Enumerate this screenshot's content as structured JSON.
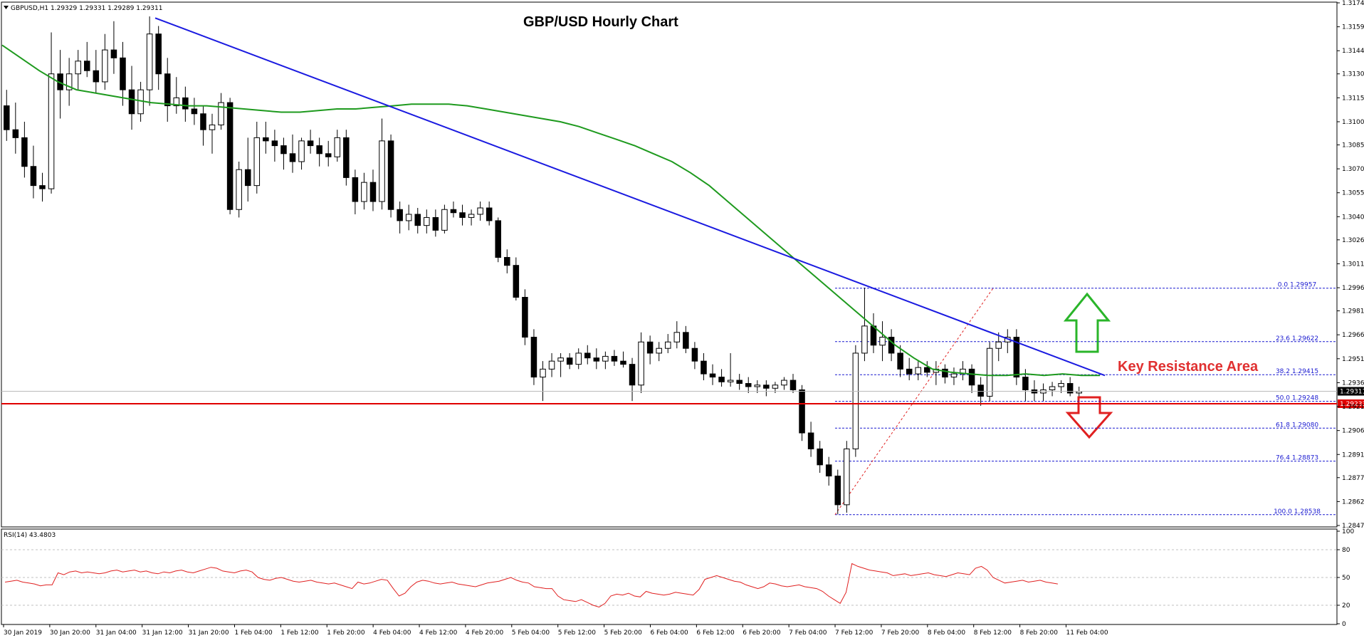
{
  "chart_data": [
    {
      "type": "candlestick",
      "symbol_header": "GBPUSD,H1  1.29329 1.29331 1.29289 1.29311",
      "title": "GBP/USD Hourly Chart",
      "annotation": "Key Resistance Area",
      "ylim": [
        1.2847,
        1.31745
      ],
      "y_ticks": [
        "1.31745",
        "1.31595",
        "1.31445",
        "1.31300",
        "1.31150",
        "1.31000",
        "1.30855",
        "1.30705",
        "1.30555",
        "1.30405",
        "1.30260",
        "1.30110",
        "1.29960",
        "1.29815",
        "1.29665",
        "1.29515",
        "1.29365",
        "1.29215",
        "1.29065",
        "1.28915",
        "1.28770",
        "1.28620",
        "1.28470"
      ],
      "x_ticks": [
        "30 Jan 2019",
        "30 Jan 20:00",
        "31 Jan 04:00",
        "31 Jan 12:00",
        "31 Jan 20:00",
        "1 Feb 04:00",
        "1 Feb 12:00",
        "1 Feb 20:00",
        "4 Feb 04:00",
        "4 Feb 12:00",
        "4 Feb 20:00",
        "5 Feb 04:00",
        "5 Feb 12:00",
        "5 Feb 20:00",
        "6 Feb 04:00",
        "6 Feb 12:00",
        "6 Feb 20:00",
        "7 Feb 04:00",
        "7 Feb 12:00",
        "7 Feb 20:00",
        "8 Feb 04:00",
        "8 Feb 12:00",
        "8 Feb 20:00",
        "11 Feb 04:00"
      ],
      "current_price": "1.29311",
      "support_level": "1.29233",
      "fibonacci_levels": [
        {
          "label": "0.0 1.29957",
          "value": 1.29957
        },
        {
          "label": "23.6 1.29622",
          "value": 1.29622
        },
        {
          "label": "38.2 1.29415",
          "value": 1.29415
        },
        {
          "label": "50.0 1.29248",
          "value": 1.29248
        },
        {
          "label": "61.8 1.29080",
          "value": 1.2908
        },
        {
          "label": "76.4 1.28873",
          "value": 1.28873
        },
        {
          "label": "100.0 1.28538",
          "value": 1.28538
        }
      ],
      "trendline": {
        "start": {
          "x": "31 Jan 12:00",
          "y": 1.3165
        },
        "end": {
          "x": "11 Feb 04:00",
          "y": 1.2941
        }
      },
      "fib_swing": {
        "low": 1.28538,
        "high": 1.29957
      },
      "moving_average_color": "#1e9a1e",
      "trendline_color": "#1a1ae0",
      "support_color": "#e00000",
      "candles": [
        [
          1.311,
          1.312,
          1.3088,
          1.3095
        ],
        [
          1.3095,
          1.3112,
          1.308,
          1.309
        ],
        [
          1.309,
          1.31,
          1.3065,
          1.3072
        ],
        [
          1.3072,
          1.3085,
          1.3052,
          1.306
        ],
        [
          1.306,
          1.3068,
          1.305,
          1.3058
        ],
        [
          1.3058,
          1.3156,
          1.3055,
          1.313
        ],
        [
          1.313,
          1.3145,
          1.3102,
          1.312
        ],
        [
          1.312,
          1.314,
          1.311,
          1.313
        ],
        [
          1.313,
          1.3145,
          1.312,
          1.3138
        ],
        [
          1.3138,
          1.315,
          1.3128,
          1.3132
        ],
        [
          1.3132,
          1.3145,
          1.3118,
          1.3125
        ],
        [
          1.3125,
          1.3155,
          1.312,
          1.3145
        ],
        [
          1.3145,
          1.3163,
          1.313,
          1.314
        ],
        [
          1.314,
          1.315,
          1.311,
          1.312
        ],
        [
          1.312,
          1.3135,
          1.3095,
          1.3105
        ],
        [
          1.3105,
          1.3125,
          1.31,
          1.312
        ],
        [
          1.312,
          1.3166,
          1.311,
          1.3155
        ],
        [
          1.3155,
          1.316,
          1.312,
          1.313
        ],
        [
          1.313,
          1.314,
          1.31,
          1.311
        ],
        [
          1.311,
          1.3128,
          1.3105,
          1.3115
        ],
        [
          1.3115,
          1.3122,
          1.31,
          1.3108
        ],
        [
          1.3108,
          1.3115,
          1.3098,
          1.3105
        ],
        [
          1.3105,
          1.311,
          1.3085,
          1.3095
        ],
        [
          1.3095,
          1.3105,
          1.308,
          1.3098
        ],
        [
          1.3098,
          1.3118,
          1.3095,
          1.3112
        ],
        [
          1.3112,
          1.3115,
          1.3042,
          1.3045
        ],
        [
          1.3045,
          1.3075,
          1.304,
          1.307
        ],
        [
          1.307,
          1.309,
          1.305,
          1.306
        ],
        [
          1.306,
          1.31,
          1.3055,
          1.309
        ],
        [
          1.309,
          1.31,
          1.308,
          1.3088
        ],
        [
          1.3088,
          1.3095,
          1.3075,
          1.3085
        ],
        [
          1.3085,
          1.309,
          1.307,
          1.308
        ],
        [
          1.308,
          1.3092,
          1.3068,
          1.3075
        ],
        [
          1.3075,
          1.309,
          1.307,
          1.3088
        ],
        [
          1.3088,
          1.3095,
          1.308,
          1.3085
        ],
        [
          1.3085,
          1.309,
          1.3072,
          1.308
        ],
        [
          1.308,
          1.3088,
          1.3072,
          1.3078
        ],
        [
          1.3078,
          1.3095,
          1.3075,
          1.309
        ],
        [
          1.309,
          1.3095,
          1.306,
          1.3065
        ],
        [
          1.3065,
          1.307,
          1.3042,
          1.305
        ],
        [
          1.305,
          1.3068,
          1.3045,
          1.3062
        ],
        [
          1.3062,
          1.307,
          1.3044,
          1.305
        ],
        [
          1.305,
          1.3102,
          1.3045,
          1.3088
        ],
        [
          1.3088,
          1.3092,
          1.304,
          1.3045
        ],
        [
          1.3045,
          1.305,
          1.303,
          1.3038
        ],
        [
          1.3038,
          1.3048,
          1.3032,
          1.3042
        ],
        [
          1.3042,
          1.3046,
          1.303,
          1.3035
        ],
        [
          1.3035,
          1.3045,
          1.303,
          1.304
        ],
        [
          1.304,
          1.3045,
          1.3028,
          1.3032
        ],
        [
          1.3032,
          1.3048,
          1.303,
          1.3045
        ],
        [
          1.3045,
          1.305,
          1.304,
          1.3043
        ],
        [
          1.3043,
          1.3048,
          1.3035,
          1.304
        ],
        [
          1.304,
          1.3045,
          1.3035,
          1.3042
        ],
        [
          1.3042,
          1.305,
          1.3038,
          1.3046
        ],
        [
          1.3046,
          1.305,
          1.3035,
          1.3038
        ],
        [
          1.3038,
          1.304,
          1.3012,
          1.3015
        ],
        [
          1.3015,
          1.302,
          1.3005,
          1.301
        ],
        [
          1.301,
          1.3015,
          1.2988,
          1.299
        ],
        [
          1.299,
          1.2995,
          1.296,
          1.2965
        ],
        [
          1.2965,
          1.297,
          1.2935,
          1.294
        ],
        [
          1.294,
          1.295,
          1.2925,
          1.2945
        ],
        [
          1.2945,
          1.2955,
          1.294,
          1.295
        ],
        [
          1.295,
          1.2955,
          1.294,
          1.2952
        ],
        [
          1.2952,
          1.2955,
          1.2945,
          1.2948
        ],
        [
          1.2948,
          1.2958,
          1.2945,
          1.2955
        ],
        [
          1.2955,
          1.296,
          1.2948,
          1.2952
        ],
        [
          1.2952,
          1.2958,
          1.2945,
          1.295
        ],
        [
          1.295,
          1.2956,
          1.2945,
          1.2953
        ],
        [
          1.2953,
          1.2957,
          1.2947,
          1.295
        ],
        [
          1.295,
          1.2956,
          1.2946,
          1.2948
        ],
        [
          1.2948,
          1.2952,
          1.2925,
          1.2935
        ],
        [
          1.2935,
          1.2968,
          1.293,
          1.2962
        ],
        [
          1.2962,
          1.2966,
          1.2948,
          1.2955
        ],
        [
          1.2955,
          1.2962,
          1.295,
          1.2958
        ],
        [
          1.2958,
          1.2967,
          1.2955,
          1.2962
        ],
        [
          1.2962,
          1.2975,
          1.2958,
          1.2968
        ],
        [
          1.2968,
          1.2972,
          1.2955,
          1.2958
        ],
        [
          1.2958,
          1.2962,
          1.2945,
          1.295
        ],
        [
          1.295,
          1.2955,
          1.2938,
          1.2942
        ],
        [
          1.2942,
          1.2948,
          1.2935,
          1.294
        ],
        [
          1.294,
          1.2945,
          1.2934,
          1.2937
        ],
        [
          1.2937,
          1.2955,
          1.2934,
          1.2938
        ],
        [
          1.2938,
          1.2942,
          1.2932,
          1.2936
        ],
        [
          1.2936,
          1.294,
          1.293,
          1.2934
        ],
        [
          1.2934,
          1.2938,
          1.293,
          1.2935
        ],
        [
          1.2935,
          1.2938,
          1.2928,
          1.2933
        ],
        [
          1.2933,
          1.2937,
          1.293,
          1.2935
        ],
        [
          1.2935,
          1.294,
          1.2932,
          1.2938
        ],
        [
          1.2938,
          1.2942,
          1.293,
          1.2932
        ],
        [
          1.2932,
          1.2935,
          1.29,
          1.2905
        ],
        [
          1.2905,
          1.2912,
          1.289,
          1.2895
        ],
        [
          1.2895,
          1.29,
          1.288,
          1.2885
        ],
        [
          1.2885,
          1.289,
          1.2872,
          1.2878
        ],
        [
          1.2878,
          1.2882,
          1.2854,
          1.286
        ],
        [
          1.286,
          1.29,
          1.2855,
          1.2895
        ],
        [
          1.2895,
          1.296,
          1.289,
          1.2955
        ],
        [
          1.2955,
          1.2996,
          1.295,
          1.2972
        ],
        [
          1.2972,
          1.298,
          1.2955,
          1.296
        ],
        [
          1.296,
          1.2975,
          1.295,
          1.2965
        ],
        [
          1.2965,
          1.297,
          1.295,
          1.2955
        ],
        [
          1.2955,
          1.296,
          1.294,
          1.2945
        ],
        [
          1.2945,
          1.2952,
          1.2938,
          1.2942
        ],
        [
          1.2942,
          1.295,
          1.2938,
          1.2946
        ],
        [
          1.2946,
          1.295,
          1.294,
          1.2943
        ],
        [
          1.2943,
          1.295,
          1.2935,
          1.2945
        ],
        [
          1.2945,
          1.2948,
          1.2936,
          1.294
        ],
        [
          1.294,
          1.2946,
          1.2935,
          1.2942
        ],
        [
          1.2942,
          1.295,
          1.2938,
          1.2945
        ],
        [
          1.2945,
          1.2948,
          1.293,
          1.2935
        ],
        [
          1.2935,
          1.294,
          1.2922,
          1.2928
        ],
        [
          1.2928,
          1.2962,
          1.2925,
          1.2958
        ],
        [
          1.2958,
          1.2968,
          1.295,
          1.2962
        ],
        [
          1.2962,
          1.297,
          1.2955,
          1.2965
        ],
        [
          1.2965,
          1.297,
          1.2935,
          1.294
        ],
        [
          1.294,
          1.2945,
          1.2925,
          1.2932
        ],
        [
          1.2932,
          1.2938,
          1.2925,
          1.293
        ],
        [
          1.293,
          1.2936,
          1.2925,
          1.2932
        ],
        [
          1.2932,
          1.2937,
          1.2928,
          1.2934
        ],
        [
          1.2934,
          1.2938,
          1.293,
          1.2936
        ],
        [
          1.2936,
          1.294,
          1.2928,
          1.293
        ],
        [
          1.293,
          1.2934,
          1.2928,
          1.2931
        ]
      ],
      "moving_average": [
        1.3148,
        1.314,
        1.3132,
        1.3125,
        1.312,
        1.3118,
        1.3116,
        1.3114,
        1.3112,
        1.3111,
        1.311,
        1.311,
        1.3109,
        1.3108,
        1.3107,
        1.3106,
        1.3106,
        1.3107,
        1.3108,
        1.3108,
        1.3109,
        1.311,
        1.3111,
        1.3111,
        1.3111,
        1.311,
        1.3108,
        1.3106,
        1.3104,
        1.3102,
        1.31,
        1.3097,
        1.3093,
        1.3089,
        1.3085,
        1.308,
        1.3075,
        1.3068,
        1.306,
        1.305,
        1.304,
        1.303,
        1.302,
        1.301,
        1.3,
        1.299,
        1.298,
        1.297,
        1.296,
        1.2952,
        1.2945,
        1.2943,
        1.2942,
        1.2941,
        1.2941,
        1.2942,
        1.2941,
        1.2942,
        1.2941,
        1.2941
      ]
    },
    {
      "type": "line",
      "title": "RSI(14) 43.4803",
      "ylim": [
        0,
        100
      ],
      "y_ticks": [
        "100",
        "80",
        "50",
        "20",
        "0"
      ],
      "color": "#e02020",
      "values": [
        45,
        46,
        47,
        45,
        44,
        43,
        41,
        42,
        42,
        55,
        53,
        56,
        57,
        55,
        56,
        55,
        54,
        55,
        57,
        58,
        56,
        57,
        58,
        56,
        57,
        55,
        54,
        56,
        55,
        57,
        58,
        56,
        55,
        57,
        59,
        61,
        60,
        57,
        56,
        55,
        57,
        58,
        56,
        50,
        48,
        47,
        49,
        50,
        48,
        46,
        45,
        46,
        47,
        45,
        44,
        43,
        44,
        42,
        40,
        38,
        45,
        43,
        44,
        46,
        48,
        47,
        38,
        30,
        33,
        40,
        45,
        47,
        46,
        44,
        43,
        44,
        45,
        43,
        42,
        41,
        40,
        42,
        44,
        45,
        46,
        48,
        50,
        47,
        45,
        44,
        40,
        39,
        38,
        38,
        30,
        26,
        25,
        24,
        26,
        23,
        20,
        18,
        22,
        30,
        32,
        31,
        33,
        30,
        29,
        35,
        33,
        32,
        31,
        32,
        34,
        33,
        32,
        31,
        37,
        48,
        50,
        52,
        50,
        48,
        46,
        45,
        42,
        40,
        38,
        40,
        44,
        43,
        41,
        40,
        41,
        42,
        40,
        39,
        38,
        35,
        30,
        26,
        22,
        34,
        65,
        62,
        60,
        58,
        57,
        56,
        55,
        52,
        53,
        54,
        52,
        53,
        54,
        55,
        53,
        52,
        51,
        53,
        55,
        54,
        53,
        60,
        62,
        58,
        50,
        47,
        44,
        45,
        46,
        47,
        45,
        46,
        47,
        45,
        44,
        43
      ]
    }
  ]
}
